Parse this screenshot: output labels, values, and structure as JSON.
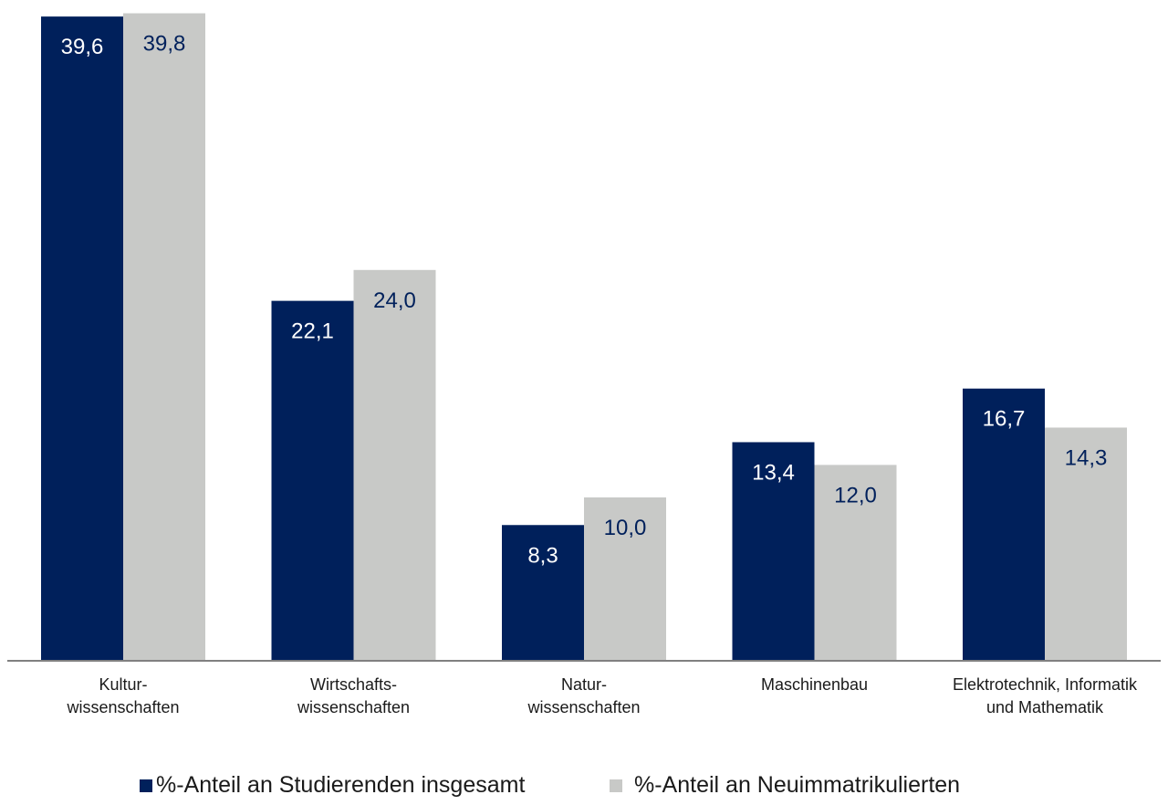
{
  "chart_data": {
    "type": "bar",
    "categories": [
      "Kultur-\nwissenschaften",
      "Wirtschafts-\nwissenschaften",
      "Natur-\nwissenschaften",
      "Maschinenbau",
      "Elektrotechnik, Informatik\nund Mathematik"
    ],
    "series": [
      {
        "name": "%-Anteil an Studierenden insgesamt",
        "color": "#00205b",
        "label_color": "#ffffff",
        "values": [
          39.6,
          22.1,
          8.3,
          13.4,
          16.7
        ],
        "labels": [
          "39,6",
          "22,1",
          "8,3",
          "13,4",
          "16,7"
        ]
      },
      {
        "name": "%-Anteil an Neuimmatrikulierten",
        "color": "#c8c9c7",
        "label_color": "#00205b",
        "values": [
          39.8,
          24.0,
          10.0,
          12.0,
          14.3
        ],
        "labels": [
          "39,8",
          "24,0",
          "10,0",
          "12,0",
          "14,3"
        ]
      }
    ],
    "ylim": [
      0,
      40
    ],
    "grid": false,
    "legend_position": "bottom",
    "axis_color": "#808080",
    "title": "",
    "xlabel": "",
    "ylabel": ""
  }
}
